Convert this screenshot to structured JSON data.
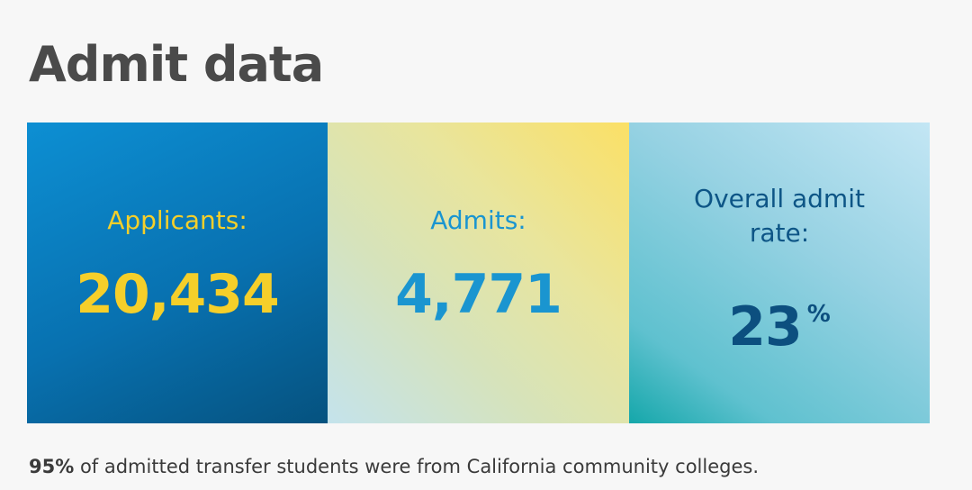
{
  "page": {
    "title": "Admit data"
  },
  "stats": {
    "applicants": {
      "label": "Applicants:",
      "value": "20,434"
    },
    "admits": {
      "label": "Admits:",
      "value": "4,771"
    },
    "admit_rate": {
      "label": "Overall admit rate:",
      "value": "23",
      "suffix": "%"
    }
  },
  "footnote": {
    "emphasis": "95%",
    "text": " of admitted transfer students were from California community colleges."
  },
  "colors": {
    "title": "#4a4a4a",
    "applicants_accent": "#f5cf2a",
    "admits_accent": "#1a95d0",
    "admit_rate_accent": "#0c4f7f",
    "footnote_text": "#3a3a3a"
  }
}
